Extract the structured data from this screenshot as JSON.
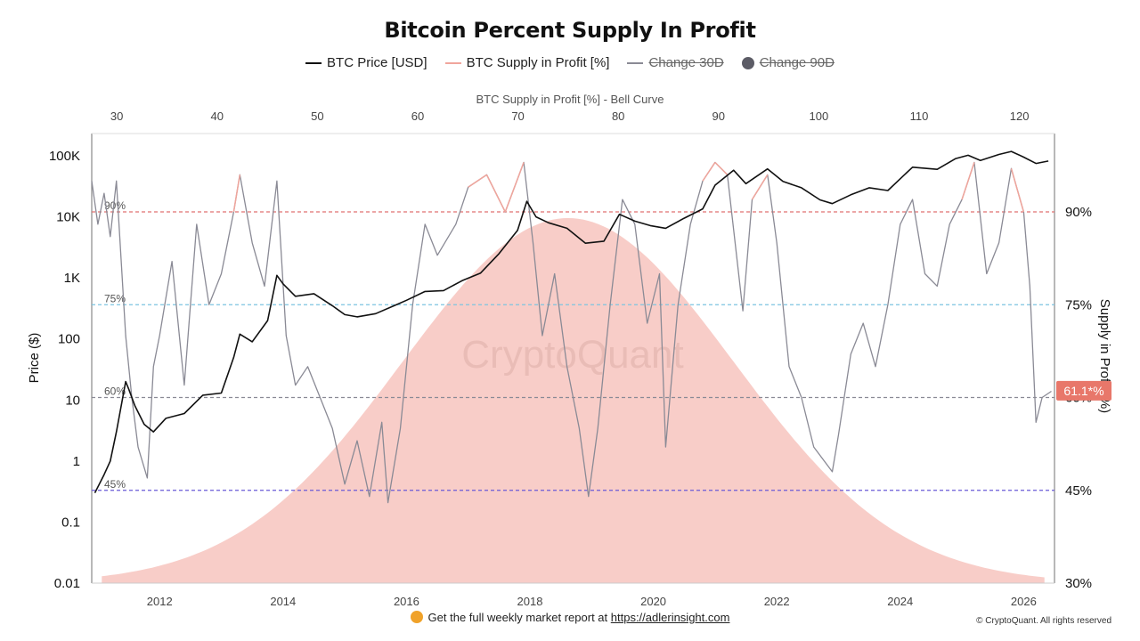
{
  "title": "Bitcoin Percent Supply In Profit",
  "legend": [
    {
      "label": "BTC Price [USD]",
      "color": "#111111",
      "style": "line",
      "active": true
    },
    {
      "label": "BTC Supply in Profit [%]",
      "color": "#f0a59c",
      "style": "line",
      "active": true
    },
    {
      "label": "Change 30D",
      "color": "#8a8a95",
      "style": "line",
      "active": false
    },
    {
      "label": "Change 90D",
      "color": "#5c5c66",
      "style": "dot",
      "active": false
    }
  ],
  "footer": {
    "text": "Get the full weekly market report at",
    "link": "https://adlerinsight.com"
  },
  "copyright": "© CryptoQuant. All rights reserved",
  "watermark": "CryptoQuant",
  "chart_data": {
    "type": "line",
    "title": "Bitcoin Percent Supply In Profit",
    "top_axis_label": "BTC Supply in Profit [%] - Bell Curve",
    "left_axis_label": "Price ($)",
    "right_axis_label": "Supply in Profit (%)",
    "x_ticks": [
      "2012",
      "2014",
      "2016",
      "2018",
      "2020",
      "2022",
      "2024",
      "2026"
    ],
    "x_range": [
      2010.9,
      2026.5
    ],
    "top_ticks": [
      "30",
      "40",
      "50",
      "60",
      "70",
      "80",
      "90",
      "100",
      "110",
      "120"
    ],
    "top_range": [
      27.5,
      123.5
    ],
    "left_ticks": [
      "100K",
      "10K",
      "1K",
      "100",
      "10",
      "1",
      "0.1",
      "0.01"
    ],
    "left_scale": "log",
    "left_range": [
      0.01,
      100000
    ],
    "right_ticks": [
      "90%",
      "75%",
      "60%",
      "45%",
      "30%"
    ],
    "right_range": [
      30,
      90
    ],
    "current_value_label": "61.1*%",
    "reference_lines": [
      {
        "label": "90%",
        "value": 90,
        "color": "#e07070"
      },
      {
        "label": "75%",
        "value": 75,
        "color": "#7cc4e0"
      },
      {
        "label": "60%",
        "value": 60,
        "color": "#8a8a95"
      },
      {
        "label": "45%",
        "value": 45,
        "color": "#6a5ad6"
      }
    ],
    "bell_curve": {
      "center": 75,
      "sigma": 16.5,
      "peak_pct": 89,
      "color": "#f5b8b0"
    },
    "series": [
      {
        "name": "BTC Price [USD]",
        "color": "#111111",
        "x": [
          2010.95,
          2011.1,
          2011.2,
          2011.3,
          2011.45,
          2011.5,
          2011.6,
          2011.75,
          2011.9,
          2012.1,
          2012.4,
          2012.7,
          2013.0,
          2013.2,
          2013.3,
          2013.5,
          2013.75,
          2013.9,
          2014.0,
          2014.2,
          2014.5,
          2014.8,
          2015.0,
          2015.2,
          2015.5,
          2015.8,
          2016.0,
          2016.3,
          2016.6,
          2016.9,
          2017.2,
          2017.5,
          2017.8,
          2017.95,
          2018.1,
          2018.3,
          2018.6,
          2018.9,
          2019.2,
          2019.45,
          2019.7,
          2019.95,
          2020.2,
          2020.5,
          2020.8,
          2021.0,
          2021.3,
          2021.5,
          2021.85,
          2022.1,
          2022.4,
          2022.7,
          2022.9,
          2023.2,
          2023.5,
          2023.8,
          2024.0,
          2024.2,
          2024.6,
          2024.9,
          2025.1,
          2025.3,
          2025.6,
          2025.8,
          2026.0,
          2026.2,
          2026.4
        ],
        "y": [
          0.3,
          0.6,
          1,
          3,
          20,
          15,
          8,
          4,
          3,
          5,
          6,
          12,
          13,
          50,
          120,
          90,
          200,
          1100,
          800,
          500,
          550,
          350,
          250,
          230,
          260,
          350,
          430,
          600,
          620,
          900,
          1200,
          2500,
          6000,
          18000,
          10000,
          8000,
          6500,
          3700,
          4000,
          11000,
          8500,
          7200,
          6500,
          9500,
          13500,
          33000,
          58000,
          35000,
          61000,
          38000,
          30000,
          19000,
          16500,
          23000,
          30000,
          27000,
          42000,
          65000,
          60000,
          90000,
          102000,
          84000,
          105000,
          118000,
          95000,
          75000,
          82000
        ]
      },
      {
        "name": "BTC Supply in Profit [%]",
        "color": "#8a8a95",
        "x": [
          2010.9,
          2011.0,
          2011.1,
          2011.2,
          2011.3,
          2011.45,
          2011.55,
          2011.65,
          2011.8,
          2011.9,
          2012.0,
          2012.2,
          2012.4,
          2012.6,
          2012.8,
          2013.0,
          2013.2,
          2013.3,
          2013.5,
          2013.7,
          2013.9,
          2014.05,
          2014.2,
          2014.4,
          2014.6,
          2014.8,
          2015.0,
          2015.2,
          2015.4,
          2015.6,
          2015.7,
          2015.9,
          2016.1,
          2016.3,
          2016.5,
          2016.8,
          2017.0,
          2017.3,
          2017.6,
          2017.9,
          2018.05,
          2018.2,
          2018.4,
          2018.6,
          2018.8,
          2018.95,
          2019.1,
          2019.3,
          2019.5,
          2019.7,
          2019.9,
          2020.1,
          2020.2,
          2020.4,
          2020.6,
          2020.8,
          2021.0,
          2021.2,
          2021.45,
          2021.6,
          2021.85,
          2022.0,
          2022.2,
          2022.4,
          2022.6,
          2022.9,
          2023.0,
          2023.2,
          2023.4,
          2023.6,
          2023.8,
          2024.0,
          2024.2,
          2024.4,
          2024.6,
          2024.8,
          2025.0,
          2025.2,
          2025.4,
          2025.6,
          2025.8,
          2026.0,
          2026.1,
          2026.2,
          2026.3,
          2026.45
        ],
        "y": [
          95,
          88,
          93,
          86,
          95,
          70,
          60,
          52,
          47,
          65,
          70,
          82,
          62,
          88,
          75,
          80,
          90,
          96,
          85,
          78,
          95,
          70,
          62,
          65,
          60,
          55,
          46,
          53,
          44,
          56,
          43,
          55,
          75,
          88,
          83,
          88,
          94,
          96,
          90,
          98,
          85,
          70,
          80,
          65,
          55,
          44,
          55,
          75,
          92,
          88,
          72,
          80,
          52,
          75,
          88,
          95,
          98,
          96,
          74,
          92,
          96,
          85,
          65,
          60,
          52,
          48,
          54,
          67,
          72,
          65,
          75,
          88,
          92,
          80,
          78,
          88,
          92,
          98,
          80,
          85,
          97,
          90,
          78,
          56,
          60,
          61
        ]
      }
    ]
  }
}
